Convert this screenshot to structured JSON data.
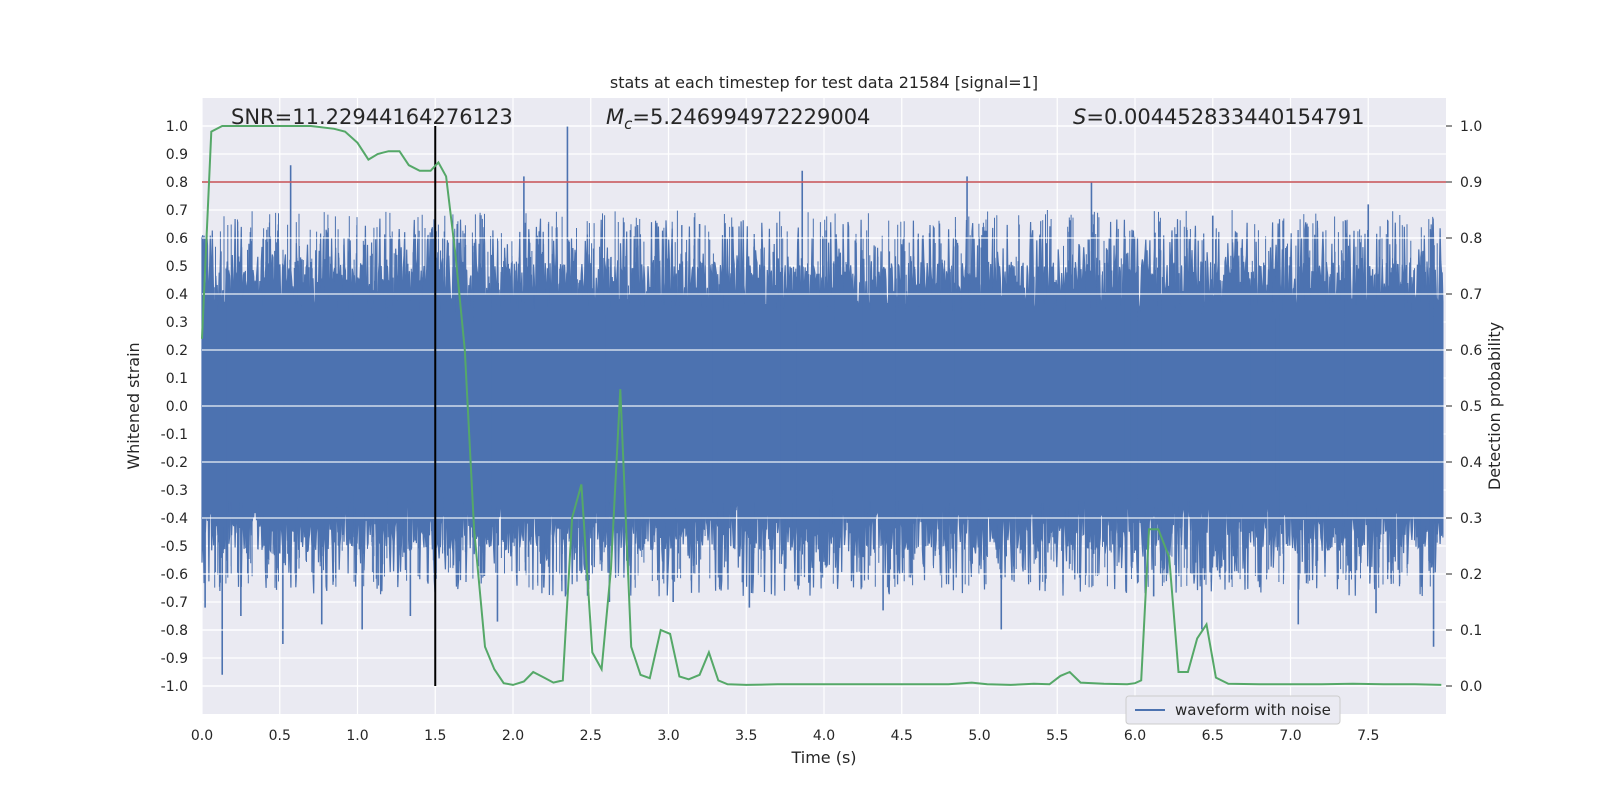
{
  "chart_data": {
    "type": "line",
    "title": "stats at each timestep for test data 21584 [signal=1]",
    "xlabel": "Time (s)",
    "ylabel_left": "Whitened strain",
    "ylabel_right": "Detection probability",
    "xlim": [
      0.0,
      8.0
    ],
    "ylim_left": [
      -1.1,
      1.1
    ],
    "ylim_right": [
      -0.05,
      1.05
    ],
    "xticks": [
      "0.0",
      "0.5",
      "1.0",
      "1.5",
      "2.0",
      "2.5",
      "3.0",
      "3.5",
      "4.0",
      "4.5",
      "5.0",
      "5.5",
      "6.0",
      "6.5",
      "7.0",
      "7.5"
    ],
    "yticks_left": [
      "1.0",
      "0.9",
      "0.8",
      "0.7",
      "0.6",
      "0.5",
      "0.4",
      "0.3",
      "0.2",
      "0.1",
      "0.0",
      "-0.1",
      "-0.2",
      "-0.3",
      "-0.4",
      "-0.5",
      "-0.6",
      "-0.7",
      "-0.8",
      "-0.9",
      "-1.0"
    ],
    "yticks_right": [
      "1.0",
      "0.9",
      "0.8",
      "0.7",
      "0.6",
      "0.5",
      "0.4",
      "0.3",
      "0.2",
      "0.1",
      "0.0"
    ],
    "grid": true,
    "legend_position": "lower-right",
    "annotations": {
      "snr": "SNR=11.22944164276123",
      "mc_symbol": "M",
      "mc_sub": "c",
      "mc_value": "=5.246994972229004",
      "s_symbol": "S",
      "s_value": "=0.004452833440154791"
    },
    "threshold": {
      "value": 0.9,
      "axis": "right",
      "color": "#c44e52"
    },
    "vline": {
      "x": 1.5,
      "color": "#000000"
    },
    "series": [
      {
        "name": "waveform with noise",
        "axis": "left",
        "color": "#4c72b0",
        "kind": "dense-noise",
        "band_upper": 0.45,
        "band_lower": -0.45,
        "peak_max": 1.0,
        "peak_min": -0.96,
        "spikes": [
          [
            0.02,
            -0.72
          ],
          [
            0.13,
            -0.96
          ],
          [
            0.25,
            -0.75
          ],
          [
            0.57,
            0.86
          ],
          [
            0.52,
            -0.85
          ],
          [
            0.77,
            -0.78
          ],
          [
            1.03,
            -0.8
          ],
          [
            1.34,
            -0.75
          ],
          [
            1.76,
            0.5
          ],
          [
            1.9,
            -0.77
          ],
          [
            2.07,
            0.82
          ],
          [
            2.35,
            1.0
          ],
          [
            2.62,
            -0.7
          ],
          [
            3.03,
            -0.7
          ],
          [
            3.52,
            -0.72
          ],
          [
            3.86,
            0.84
          ],
          [
            4.38,
            -0.73
          ],
          [
            4.92,
            0.82
          ],
          [
            5.14,
            -0.8
          ],
          [
            5.72,
            0.8
          ],
          [
            6.12,
            -0.68
          ],
          [
            6.43,
            -0.8
          ],
          [
            7.05,
            -0.78
          ],
          [
            7.55,
            -0.74
          ],
          [
            7.92,
            -0.86
          ],
          [
            7.5,
            0.72
          ],
          [
            3.2,
            0.65
          ],
          [
            6.5,
            0.68
          ]
        ]
      },
      {
        "name": "",
        "axis": "right",
        "color": "#55a868",
        "x": [
          0.0,
          0.06,
          0.13,
          0.3,
          0.5,
          0.7,
          0.85,
          0.92,
          1.0,
          1.07,
          1.13,
          1.2,
          1.27,
          1.33,
          1.4,
          1.47,
          1.52,
          1.57,
          1.63,
          1.69,
          1.75,
          1.82,
          1.88,
          1.94,
          2.0,
          2.07,
          2.13,
          2.2,
          2.26,
          2.32,
          2.38,
          2.44,
          2.51,
          2.57,
          2.63,
          2.69,
          2.76,
          2.82,
          2.88,
          2.95,
          3.01,
          3.07,
          3.13,
          3.2,
          3.26,
          3.32,
          3.38,
          3.5,
          3.7,
          4.0,
          4.2,
          4.4,
          4.6,
          4.8,
          4.95,
          5.05,
          5.2,
          5.35,
          5.45,
          5.52,
          5.58,
          5.65,
          5.8,
          5.95,
          6.0,
          6.04,
          6.09,
          6.15,
          6.22,
          6.28,
          6.34,
          6.4,
          6.46,
          6.52,
          6.6,
          6.8,
          7.0,
          7.2,
          7.4,
          7.6,
          7.8,
          7.97
        ],
        "values": [
          0.62,
          0.99,
          1.0,
          1.0,
          1.0,
          1.0,
          0.995,
          0.99,
          0.97,
          0.94,
          0.95,
          0.955,
          0.955,
          0.93,
          0.92,
          0.92,
          0.935,
          0.91,
          0.77,
          0.6,
          0.28,
          0.07,
          0.03,
          0.005,
          0.002,
          0.008,
          0.025,
          0.015,
          0.006,
          0.01,
          0.3,
          0.36,
          0.06,
          0.03,
          0.21,
          0.53,
          0.07,
          0.02,
          0.014,
          0.1,
          0.093,
          0.017,
          0.012,
          0.02,
          0.06,
          0.01,
          0.003,
          0.002,
          0.003,
          0.003,
          0.003,
          0.003,
          0.003,
          0.003,
          0.006,
          0.003,
          0.002,
          0.004,
          0.003,
          0.018,
          0.025,
          0.006,
          0.004,
          0.003,
          0.005,
          0.01,
          0.28,
          0.28,
          0.23,
          0.025,
          0.025,
          0.085,
          0.11,
          0.015,
          0.004,
          0.003,
          0.003,
          0.003,
          0.004,
          0.003,
          0.003,
          0.002
        ]
      }
    ]
  }
}
